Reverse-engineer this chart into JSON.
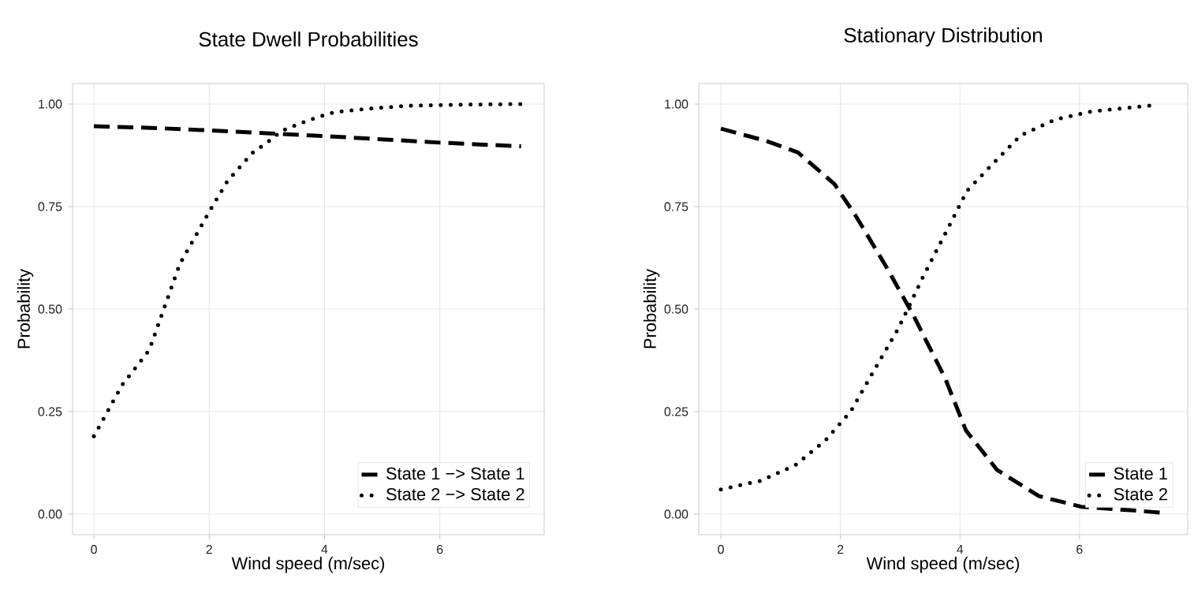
{
  "chart_data": [
    {
      "type": "line",
      "title": "State Dwell Probabilities",
      "xlabel": "Wind speed (m/sec)",
      "ylabel": "Probability",
      "xlim": [
        -0.37,
        7.81
      ],
      "ylim": [
        -0.05,
        1.05
      ],
      "xticks": [
        0,
        2,
        4,
        6
      ],
      "yticks": [
        {
          "value": 0,
          "label": "0.00"
        },
        {
          "value": 0.25,
          "label": "0.25"
        },
        {
          "value": 0.5,
          "label": "0.50"
        },
        {
          "value": 0.75,
          "label": "0.75"
        },
        {
          "value": 1,
          "label": "1.00"
        }
      ],
      "grid": true,
      "legend": "bottom right",
      "series": [
        {
          "name": "State 1 −> State 1",
          "color": "#000000",
          "line_style": "dashed",
          "x": [
            0,
            1,
            2,
            3,
            4,
            5,
            6,
            7.41
          ],
          "values": [
            0.946,
            0.942,
            0.936,
            0.929,
            0.922,
            0.914,
            0.906,
            0.897
          ]
        },
        {
          "name": "State 2 −> State 2",
          "color": "#000000",
          "line_style": "dotted",
          "x": [
            0,
            0.49,
            0.96,
            1.49,
            1.99,
            2.32,
            2.75,
            3.02,
            3.26,
            3.58,
            3.88,
            4.19,
            4.87,
            5.48,
            6.45,
            7.41
          ],
          "values": [
            0.19,
            0.315,
            0.4,
            0.61,
            0.735,
            0.813,
            0.881,
            0.908,
            0.935,
            0.953,
            0.968,
            0.981,
            0.99,
            0.996,
            0.999,
            1.0
          ]
        }
      ]
    },
    {
      "type": "line",
      "title": "Stationary Distribution",
      "xlabel": "Wind speed (m/sec)",
      "ylabel": "Probability",
      "xlim": [
        -0.37,
        7.81
      ],
      "ylim": [
        -0.05,
        1.05
      ],
      "xticks": [
        0,
        2,
        4,
        6
      ],
      "yticks": [
        {
          "value": 0,
          "label": "0.00"
        },
        {
          "value": 0.25,
          "label": "0.25"
        },
        {
          "value": 0.5,
          "label": "0.50"
        },
        {
          "value": 0.75,
          "label": "0.75"
        },
        {
          "value": 1,
          "label": "1.00"
        }
      ],
      "grid": true,
      "legend": "bottom right",
      "series": [
        {
          "name": "State 1",
          "color": "#000000",
          "line_style": "dashed",
          "x": [
            0,
            0.76,
            1.29,
            1.9,
            2.25,
            2.78,
            3.22,
            3.75,
            4.1,
            4.62,
            5.32,
            6.03,
            6.9,
            7.43
          ],
          "values": [
            0.94,
            0.91,
            0.882,
            0.805,
            0.729,
            0.6,
            0.485,
            0.332,
            0.204,
            0.108,
            0.044,
            0.018,
            0.009,
            0.003
          ]
        },
        {
          "name": "State 2",
          "color": "#000000",
          "line_style": "dotted",
          "x": [
            0,
            0.68,
            1.25,
            1.75,
            2.17,
            2.6,
            2.97,
            3.39,
            3.83,
            4.12,
            4.58,
            5.02,
            5.59,
            6.2,
            7.21
          ],
          "values": [
            0.06,
            0.082,
            0.12,
            0.18,
            0.25,
            0.36,
            0.453,
            0.581,
            0.706,
            0.789,
            0.859,
            0.924,
            0.962,
            0.982,
            0.997
          ]
        }
      ]
    }
  ]
}
